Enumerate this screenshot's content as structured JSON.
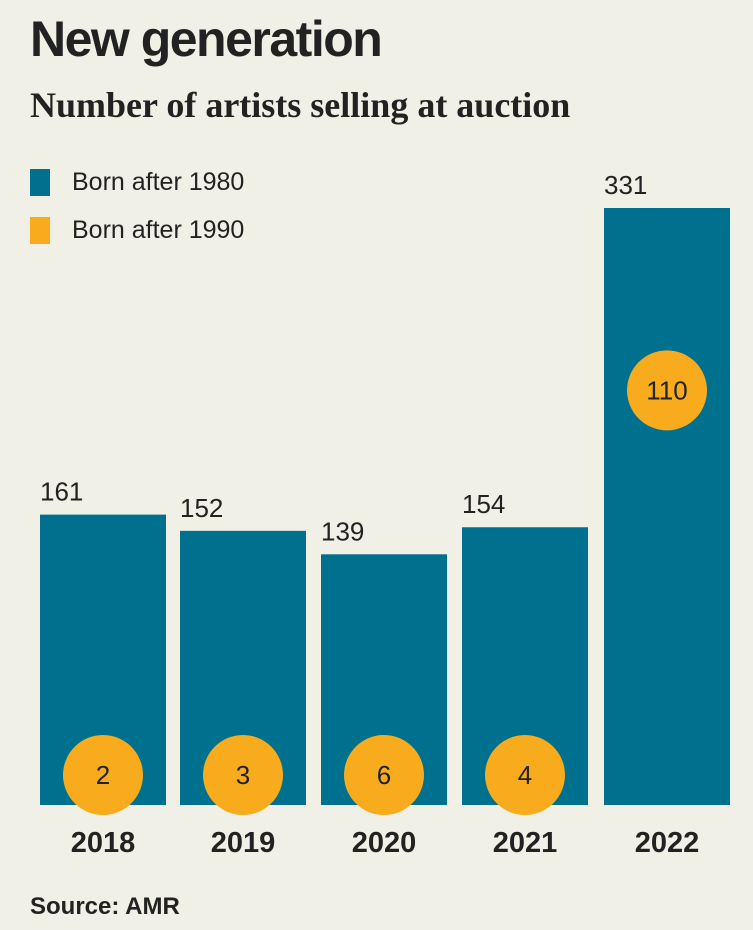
{
  "colors": {
    "born_after_1980": "#00708f",
    "born_after_1990": "#f8ac1d",
    "background": "#f1f0e6"
  },
  "chart_data": {
    "type": "bar",
    "title": "New generation",
    "subtitle": "Number of artists selling at auction",
    "categories": [
      "2018",
      "2019",
      "2020",
      "2021",
      "2022"
    ],
    "series": [
      {
        "name": "Born after 1980",
        "values": [
          161,
          152,
          139,
          154,
          331
        ]
      },
      {
        "name": "Born after 1990",
        "values": [
          2,
          3,
          6,
          4,
          110
        ]
      }
    ],
    "ylim": [
      0,
      331
    ],
    "grid": false,
    "legend": "top-left",
    "source": "Source: AMR"
  }
}
